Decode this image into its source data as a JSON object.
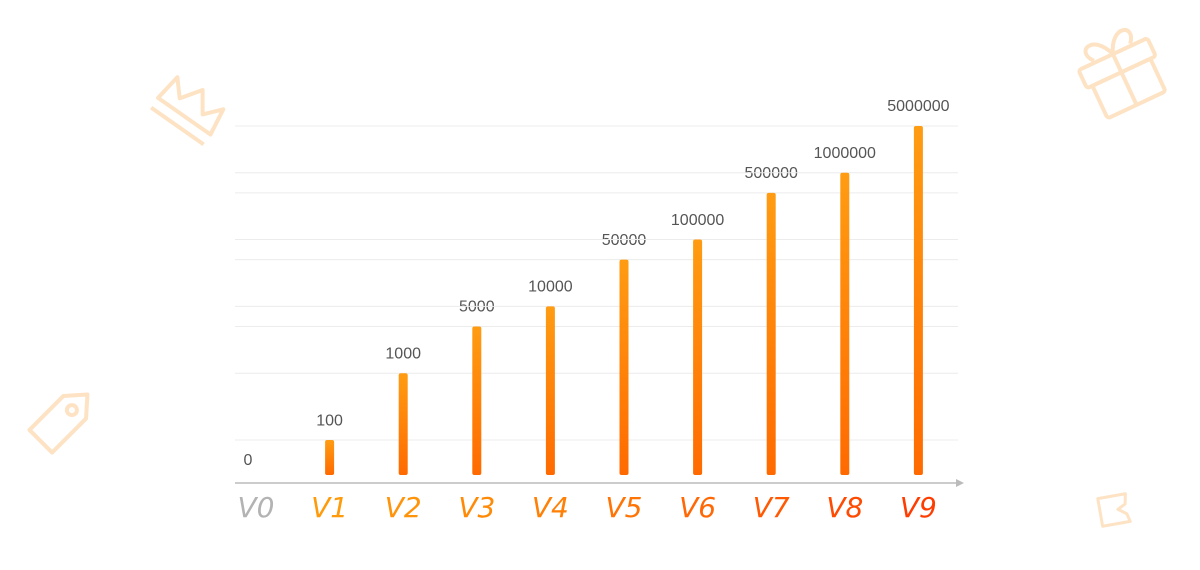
{
  "chart_data": {
    "type": "bar",
    "categories": [
      "V0",
      "V1",
      "V2",
      "V3",
      "V4",
      "V5",
      "V6",
      "V7",
      "V8",
      "V9"
    ],
    "values": [
      0,
      100,
      1000,
      5000,
      10000,
      50000,
      100000,
      500000,
      1000000,
      5000000
    ],
    "log_scale": true,
    "ylim": [
      30,
      5000000
    ],
    "color": [
      "#ff9c12",
      "#ff6a00"
    ],
    "category_colors": [
      "#b3b3b3",
      "#ff9a0a",
      "#ff930a",
      "#ff8a08",
      "#ff8006",
      "#ff7405",
      "#ff6804",
      "#ff5a03",
      "#ff4b02",
      "#ff3d01"
    ],
    "grid": true
  }
}
